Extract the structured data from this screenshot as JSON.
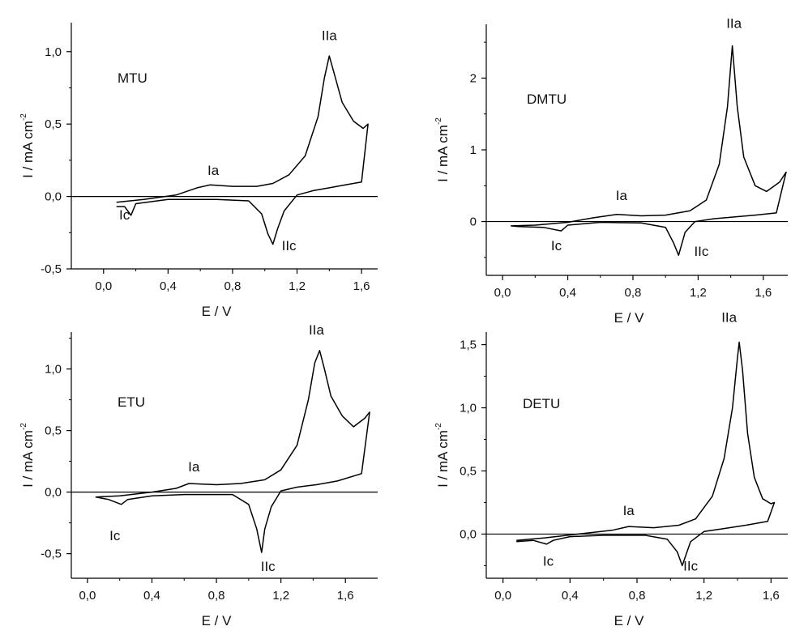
{
  "chart_data": [
    {
      "type": "line",
      "title": "",
      "compound": "MTU",
      "xlabel": "E / V",
      "ylabel": "I / mA  cm",
      "ylabel_sup": "-2",
      "xlim": [
        -0.2,
        1.7
      ],
      "ylim": [
        -0.5,
        1.2
      ],
      "xticks": [
        0.0,
        0.4,
        0.8,
        1.2,
        1.6
      ],
      "xtick_labels": [
        "0,0",
        "0,4",
        "0,8",
        "1,2",
        "1,6"
      ],
      "yticks": [
        -0.5,
        0.0,
        0.5,
        1.0
      ],
      "ytick_labels": [
        "-0,5",
        "0,0",
        "0,5",
        "1,0"
      ],
      "peak_labels": [
        {
          "text": "IIa",
          "x": 1.4,
          "y": 1.08
        },
        {
          "text": "Ia",
          "x": 0.68,
          "y": 0.15
        },
        {
          "text": "Ic",
          "x": 0.13,
          "y": -0.16
        },
        {
          "text": "IIc",
          "x": 1.15,
          "y": -0.37
        }
      ],
      "series": [
        {
          "anodic": [
            [
              0.08,
              -0.04
            ],
            [
              0.25,
              -0.02
            ],
            [
              0.45,
              0.01
            ],
            [
              0.58,
              0.06
            ],
            [
              0.66,
              0.08
            ],
            [
              0.8,
              0.07
            ],
            [
              0.95,
              0.07
            ],
            [
              1.05,
              0.09
            ],
            [
              1.15,
              0.15
            ],
            [
              1.25,
              0.28
            ],
            [
              1.33,
              0.55
            ],
            [
              1.37,
              0.82
            ],
            [
              1.4,
              0.97
            ],
            [
              1.43,
              0.85
            ],
            [
              1.48,
              0.65
            ],
            [
              1.55,
              0.52
            ],
            [
              1.61,
              0.47
            ],
            [
              1.64,
              0.5
            ]
          ],
          "cathodic": [
            [
              1.64,
              0.5
            ],
            [
              1.6,
              0.1
            ],
            [
              1.5,
              0.08
            ],
            [
              1.4,
              0.06
            ],
            [
              1.3,
              0.04
            ],
            [
              1.2,
              0.01
            ],
            [
              1.12,
              -0.1
            ],
            [
              1.08,
              -0.22
            ],
            [
              1.05,
              -0.33
            ],
            [
              1.02,
              -0.26
            ],
            [
              0.98,
              -0.12
            ],
            [
              0.9,
              -0.03
            ],
            [
              0.7,
              -0.02
            ],
            [
              0.4,
              -0.02
            ],
            [
              0.2,
              -0.05
            ],
            [
              0.17,
              -0.13
            ],
            [
              0.13,
              -0.07
            ],
            [
              0.08,
              -0.07
            ]
          ]
        }
      ]
    },
    {
      "type": "line",
      "title": "",
      "compound": "DMTU",
      "xlabel": "E / V",
      "ylabel": "I / mA  cm",
      "ylabel_sup": "-2",
      "xlim": [
        -0.1,
        1.75
      ],
      "ylim": [
        -0.75,
        2.75
      ],
      "xticks": [
        0.0,
        0.4,
        0.8,
        1.2,
        1.6
      ],
      "xtick_labels": [
        "0,0",
        "0,4",
        "0,8",
        "1,2",
        "1,6"
      ],
      "yticks": [
        0,
        1,
        2
      ],
      "ytick_labels": [
        "0",
        "1",
        "2"
      ],
      "peak_labels": [
        {
          "text": "IIa",
          "x": 1.42,
          "y": 2.7
        },
        {
          "text": "Ia",
          "x": 0.73,
          "y": 0.3
        },
        {
          "text": "Ic",
          "x": 0.33,
          "y": -0.4
        },
        {
          "text": "IIc",
          "x": 1.22,
          "y": -0.48
        }
      ],
      "series": [
        {
          "anodic": [
            [
              0.05,
              -0.06
            ],
            [
              0.2,
              -0.05
            ],
            [
              0.4,
              -0.01
            ],
            [
              0.55,
              0.05
            ],
            [
              0.7,
              0.1
            ],
            [
              0.85,
              0.08
            ],
            [
              1.0,
              0.09
            ],
            [
              1.15,
              0.15
            ],
            [
              1.25,
              0.3
            ],
            [
              1.33,
              0.8
            ],
            [
              1.38,
              1.6
            ],
            [
              1.41,
              2.45
            ],
            [
              1.44,
              1.6
            ],
            [
              1.48,
              0.9
            ],
            [
              1.55,
              0.5
            ],
            [
              1.62,
              0.42
            ],
            [
              1.7,
              0.55
            ],
            [
              1.74,
              0.69
            ]
          ],
          "cathodic": [
            [
              1.74,
              0.69
            ],
            [
              1.68,
              0.12
            ],
            [
              1.55,
              0.09
            ],
            [
              1.45,
              0.07
            ],
            [
              1.3,
              0.04
            ],
            [
              1.18,
              0.0
            ],
            [
              1.12,
              -0.15
            ],
            [
              1.08,
              -0.47
            ],
            [
              1.05,
              -0.3
            ],
            [
              1.0,
              -0.08
            ],
            [
              0.85,
              -0.02
            ],
            [
              0.6,
              -0.01
            ],
            [
              0.4,
              -0.05
            ],
            [
              0.36,
              -0.13
            ],
            [
              0.25,
              -0.08
            ],
            [
              0.1,
              -0.07
            ],
            [
              0.05,
              -0.06
            ]
          ]
        }
      ]
    },
    {
      "type": "line",
      "title": "",
      "compound": "ETU",
      "xlabel": "E / V",
      "ylabel": "I / mA  cm",
      "ylabel_sup": "-2",
      "xlim": [
        -0.1,
        1.8
      ],
      "ylim": [
        -0.7,
        1.3
      ],
      "xticks": [
        0.0,
        0.4,
        0.8,
        1.2,
        1.6
      ],
      "xtick_labels": [
        "0,0",
        "0,4",
        "0,8",
        "1,2",
        "1,6"
      ],
      "yticks": [
        -0.5,
        0.0,
        0.5,
        1.0
      ],
      "ytick_labels": [
        "-0,5",
        "0,0",
        "0,5",
        "1,0"
      ],
      "peak_labels": [
        {
          "text": "IIa",
          "x": 1.42,
          "y": 1.28
        },
        {
          "text": "Ia",
          "x": 0.66,
          "y": 0.17
        },
        {
          "text": "Ic",
          "x": 0.17,
          "y": -0.39
        },
        {
          "text": "IIc",
          "x": 1.12,
          "y": -0.64
        }
      ],
      "series": [
        {
          "anodic": [
            [
              0.05,
              -0.04
            ],
            [
              0.2,
              -0.03
            ],
            [
              0.4,
              0.0
            ],
            [
              0.55,
              0.03
            ],
            [
              0.63,
              0.07
            ],
            [
              0.8,
              0.06
            ],
            [
              0.95,
              0.07
            ],
            [
              1.1,
              0.1
            ],
            [
              1.2,
              0.18
            ],
            [
              1.3,
              0.38
            ],
            [
              1.37,
              0.75
            ],
            [
              1.41,
              1.05
            ],
            [
              1.44,
              1.15
            ],
            [
              1.47,
              1.0
            ],
            [
              1.51,
              0.78
            ],
            [
              1.58,
              0.62
            ],
            [
              1.65,
              0.53
            ],
            [
              1.72,
              0.6
            ],
            [
              1.75,
              0.65
            ]
          ],
          "cathodic": [
            [
              1.75,
              0.65
            ],
            [
              1.7,
              0.15
            ],
            [
              1.55,
              0.09
            ],
            [
              1.42,
              0.06
            ],
            [
              1.3,
              0.04
            ],
            [
              1.2,
              0.01
            ],
            [
              1.14,
              -0.12
            ],
            [
              1.1,
              -0.3
            ],
            [
              1.08,
              -0.49
            ],
            [
              1.05,
              -0.3
            ],
            [
              1.0,
              -0.1
            ],
            [
              0.9,
              -0.02
            ],
            [
              0.6,
              -0.02
            ],
            [
              0.4,
              -0.03
            ],
            [
              0.25,
              -0.06
            ],
            [
              0.21,
              -0.1
            ],
            [
              0.13,
              -0.06
            ],
            [
              0.05,
              -0.04
            ]
          ]
        }
      ]
    },
    {
      "type": "line",
      "title": "",
      "compound": "DETU",
      "xlabel": "E / V",
      "ylabel": "I / mA  cm",
      "ylabel_sup": "-2",
      "xlim": [
        -0.1,
        1.7
      ],
      "ylim": [
        -0.35,
        1.6
      ],
      "xticks": [
        0.0,
        0.4,
        0.8,
        1.2,
        1.6
      ],
      "xtick_labels": [
        "0,0",
        "0,4",
        "0,8",
        "1,2",
        "1,6"
      ],
      "yticks": [
        0.0,
        0.5,
        1.0,
        1.5
      ],
      "ytick_labels": [
        "0,0",
        "0,5",
        "1,0",
        "1,5"
      ],
      "peak_labels": [
        {
          "text": "IIa",
          "x": 1.35,
          "y": 1.68
        },
        {
          "text": "Ia",
          "x": 0.75,
          "y": 0.15
        },
        {
          "text": "Ic",
          "x": 0.27,
          "y": -0.25
        },
        {
          "text": "IIc",
          "x": 1.12,
          "y": -0.29
        }
      ],
      "series": [
        {
          "anodic": [
            [
              0.08,
              -0.05
            ],
            [
              0.25,
              -0.03
            ],
            [
              0.45,
              0.0
            ],
            [
              0.65,
              0.03
            ],
            [
              0.75,
              0.06
            ],
            [
              0.9,
              0.05
            ],
            [
              1.05,
              0.07
            ],
            [
              1.15,
              0.12
            ],
            [
              1.25,
              0.3
            ],
            [
              1.32,
              0.6
            ],
            [
              1.37,
              1.0
            ],
            [
              1.4,
              1.4
            ],
            [
              1.41,
              1.52
            ],
            [
              1.43,
              1.3
            ],
            [
              1.46,
              0.8
            ],
            [
              1.5,
              0.45
            ],
            [
              1.55,
              0.28
            ],
            [
              1.6,
              0.24
            ],
            [
              1.62,
              0.25
            ]
          ],
          "cathodic": [
            [
              1.62,
              0.25
            ],
            [
              1.58,
              0.1
            ],
            [
              1.45,
              0.07
            ],
            [
              1.3,
              0.04
            ],
            [
              1.2,
              0.02
            ],
            [
              1.12,
              -0.06
            ],
            [
              1.07,
              -0.25
            ],
            [
              1.04,
              -0.14
            ],
            [
              0.98,
              -0.04
            ],
            [
              0.85,
              -0.01
            ],
            [
              0.6,
              -0.01
            ],
            [
              0.4,
              -0.02
            ],
            [
              0.3,
              -0.05
            ],
            [
              0.26,
              -0.08
            ],
            [
              0.18,
              -0.05
            ],
            [
              0.08,
              -0.06
            ]
          ]
        }
      ]
    }
  ]
}
